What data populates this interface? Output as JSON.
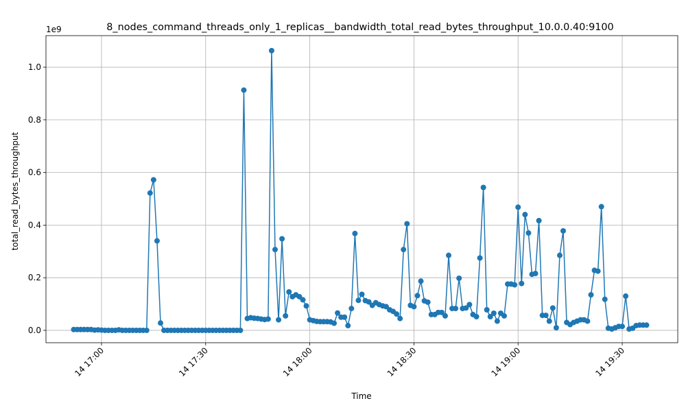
{
  "chart_data": {
    "type": "line",
    "title": "8_nodes_command_threads_only_1_replicas__bandwidth_total_read_bytes_throughput_10.0.0.40:9100",
    "x_label": "Time",
    "y_label": "total_read_bytes_throughput",
    "y_offset_label": "1e9",
    "color": "#1f77b4",
    "grid": true,
    "x": [
      "14 16:52",
      "14 16:53",
      "14 16:54",
      "14 16:55",
      "14 16:56",
      "14 16:57",
      "14 16:58",
      "14 16:59",
      "14 17:00",
      "14 17:01",
      "14 17:02",
      "14 17:03",
      "14 17:04",
      "14 17:05",
      "14 17:06",
      "14 17:07",
      "14 17:08",
      "14 17:09",
      "14 17:10",
      "14 17:11",
      "14 17:12",
      "14 17:13",
      "14 17:14",
      "14 17:15",
      "14 17:16",
      "14 17:17",
      "14 17:18",
      "14 17:19",
      "14 17:20",
      "14 17:21",
      "14 17:22",
      "14 17:23",
      "14 17:24",
      "14 17:25",
      "14 17:26",
      "14 17:27",
      "14 17:28",
      "14 17:29",
      "14 17:30",
      "14 17:31",
      "14 17:32",
      "14 17:33",
      "14 17:34",
      "14 17:35",
      "14 17:36",
      "14 17:37",
      "14 17:38",
      "14 17:39",
      "14 17:40",
      "14 17:41",
      "14 17:42",
      "14 17:43",
      "14 17:44",
      "14 17:45",
      "14 17:46",
      "14 17:47",
      "14 17:48",
      "14 17:49",
      "14 17:50",
      "14 17:51",
      "14 17:52",
      "14 17:53",
      "14 17:54",
      "14 17:55",
      "14 17:56",
      "14 17:57",
      "14 17:58",
      "14 17:59",
      "14 18:00",
      "14 18:01",
      "14 18:02",
      "14 18:03",
      "14 18:04",
      "14 18:05",
      "14 18:06",
      "14 18:07",
      "14 18:08",
      "14 18:09",
      "14 18:10",
      "14 18:11",
      "14 18:12",
      "14 18:13",
      "14 18:14",
      "14 18:15",
      "14 18:16",
      "14 18:17",
      "14 18:18",
      "14 18:19",
      "14 18:20",
      "14 18:21",
      "14 18:22",
      "14 18:23",
      "14 18:24",
      "14 18:25",
      "14 18:26",
      "14 18:27",
      "14 18:28",
      "14 18:29",
      "14 18:30",
      "14 18:31",
      "14 18:32",
      "14 18:33",
      "14 18:34",
      "14 18:35",
      "14 18:36",
      "14 18:37",
      "14 18:38",
      "14 18:39",
      "14 18:40",
      "14 18:41",
      "14 18:42",
      "14 18:43",
      "14 18:44",
      "14 18:45",
      "14 18:46",
      "14 18:47",
      "14 18:48",
      "14 18:49",
      "14 18:50",
      "14 18:51",
      "14 18:52",
      "14 18:53",
      "14 18:54",
      "14 18:55",
      "14 18:56",
      "14 18:57",
      "14 18:58",
      "14 18:59",
      "14 19:00",
      "14 19:01",
      "14 19:02",
      "14 19:03",
      "14 19:04",
      "14 19:05",
      "14 19:06",
      "14 19:07",
      "14 19:08",
      "14 19:09",
      "14 19:10",
      "14 19:11",
      "14 19:12",
      "14 19:13",
      "14 19:14",
      "14 19:15",
      "14 19:16",
      "14 19:17",
      "14 19:18",
      "14 19:19",
      "14 19:20",
      "14 19:21",
      "14 19:22",
      "14 19:23",
      "14 19:24",
      "14 19:25",
      "14 19:26",
      "14 19:27",
      "14 19:28",
      "14 19:29",
      "14 19:30",
      "14 19:31",
      "14 19:32",
      "14 19:33",
      "14 19:34",
      "14 19:35",
      "14 19:36",
      "14 19:37"
    ],
    "values": [
      0.003,
      0.003,
      0.003,
      0.003,
      0.003,
      0.003,
      0.001,
      0.002,
      0.001,
      0,
      0,
      0,
      0,
      0.002,
      0,
      0,
      0,
      0,
      0,
      0,
      0,
      0,
      0.522,
      0.572,
      0.34,
      0.028,
      0,
      0,
      0,
      0,
      0,
      0,
      0,
      0,
      0,
      0,
      0,
      0,
      0,
      0,
      0,
      0,
      0,
      0,
      0,
      0,
      0,
      0,
      0,
      0.913,
      0.045,
      0.048,
      0.046,
      0.045,
      0.043,
      0.041,
      0.043,
      1.063,
      0.307,
      0.04,
      0.348,
      0.055,
      0.146,
      0.128,
      0.135,
      0.128,
      0.116,
      0.093,
      0.04,
      0.037,
      0.034,
      0.033,
      0.033,
      0.033,
      0.032,
      0.027,
      0.066,
      0.05,
      0.05,
      0.018,
      0.083,
      0.368,
      0.114,
      0.137,
      0.113,
      0.108,
      0.095,
      0.105,
      0.098,
      0.093,
      0.09,
      0.078,
      0.072,
      0.062,
      0.045,
      0.307,
      0.405,
      0.095,
      0.09,
      0.132,
      0.187,
      0.112,
      0.107,
      0.06,
      0.06,
      0.068,
      0.068,
      0.055,
      0.285,
      0.083,
      0.083,
      0.198,
      0.083,
      0.085,
      0.098,
      0.06,
      0.052,
      0.275,
      0.543,
      0.078,
      0.052,
      0.065,
      0.035,
      0.065,
      0.055,
      0.176,
      0.176,
      0.173,
      0.468,
      0.178,
      0.44,
      0.37,
      0.213,
      0.216,
      0.417,
      0.057,
      0.057,
      0.035,
      0.085,
      0.01,
      0.285,
      0.378,
      0.03,
      0.022,
      0.03,
      0.035,
      0.04,
      0.04,
      0.035,
      0.135,
      0.228,
      0.225,
      0.47,
      0.118,
      0.008,
      0.005,
      0.01,
      0.015,
      0.015,
      0.13,
      0.005,
      0.008,
      0.018,
      0.02,
      0.02,
      0.02
    ],
    "xlim": [
      "14 16:44",
      "14 19:46"
    ],
    "xticks": [
      "14 17:00",
      "14 17:30",
      "14 18:00",
      "14 18:30",
      "14 19:00",
      "14 19:30"
    ],
    "ylim": [
      -0.047,
      1.12
    ],
    "yticks": [
      {
        "value": 0,
        "label": "0.0"
      },
      0.2,
      0.4,
      0.6,
      0.8,
      {
        "value": 1,
        "label": "1.0"
      }
    ]
  }
}
